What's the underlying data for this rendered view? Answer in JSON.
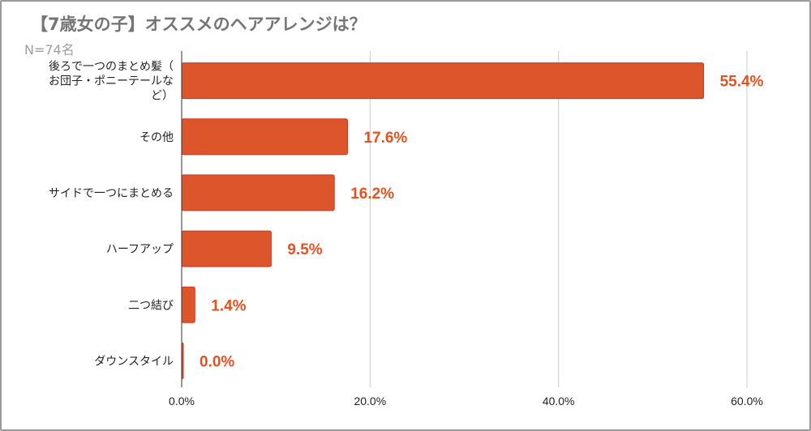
{
  "title": "【7歳女の子】オススメのヘアアレンジは？",
  "subtitle": "N=74名",
  "colors": {
    "bar": "#dd552b",
    "bar_border": "#d6301c",
    "label": "#e8501e",
    "grid": "#cccccc",
    "axis": "#333333"
  },
  "chart_data": {
    "type": "bar",
    "orientation": "horizontal",
    "title": "【7歳女の子】オススメのヘアアレンジは？",
    "subtitle": "N=74名",
    "categories": [
      [
        "後ろで一つのまとめ髪（",
        "お団子・ポニーテールな",
        "ど）"
      ],
      [
        "その他"
      ],
      [
        "サイドで一つにまとめる"
      ],
      [
        "ハーフアップ"
      ],
      [
        "二つ結び"
      ],
      [
        "ダウンスタイル"
      ]
    ],
    "values": [
      55.4,
      17.6,
      16.2,
      9.5,
      1.4,
      0.0
    ],
    "data_labels": [
      "55.4%",
      "17.6%",
      "16.2%",
      "9.5%",
      "1.4%",
      "0.0%"
    ],
    "xlim": [
      0,
      60
    ],
    "ticks": [
      0,
      20,
      40,
      60
    ],
    "tick_labels": [
      "0.0%",
      "20.0%",
      "40.0%",
      "60.0%"
    ],
    "grid": true,
    "legend": "none"
  }
}
